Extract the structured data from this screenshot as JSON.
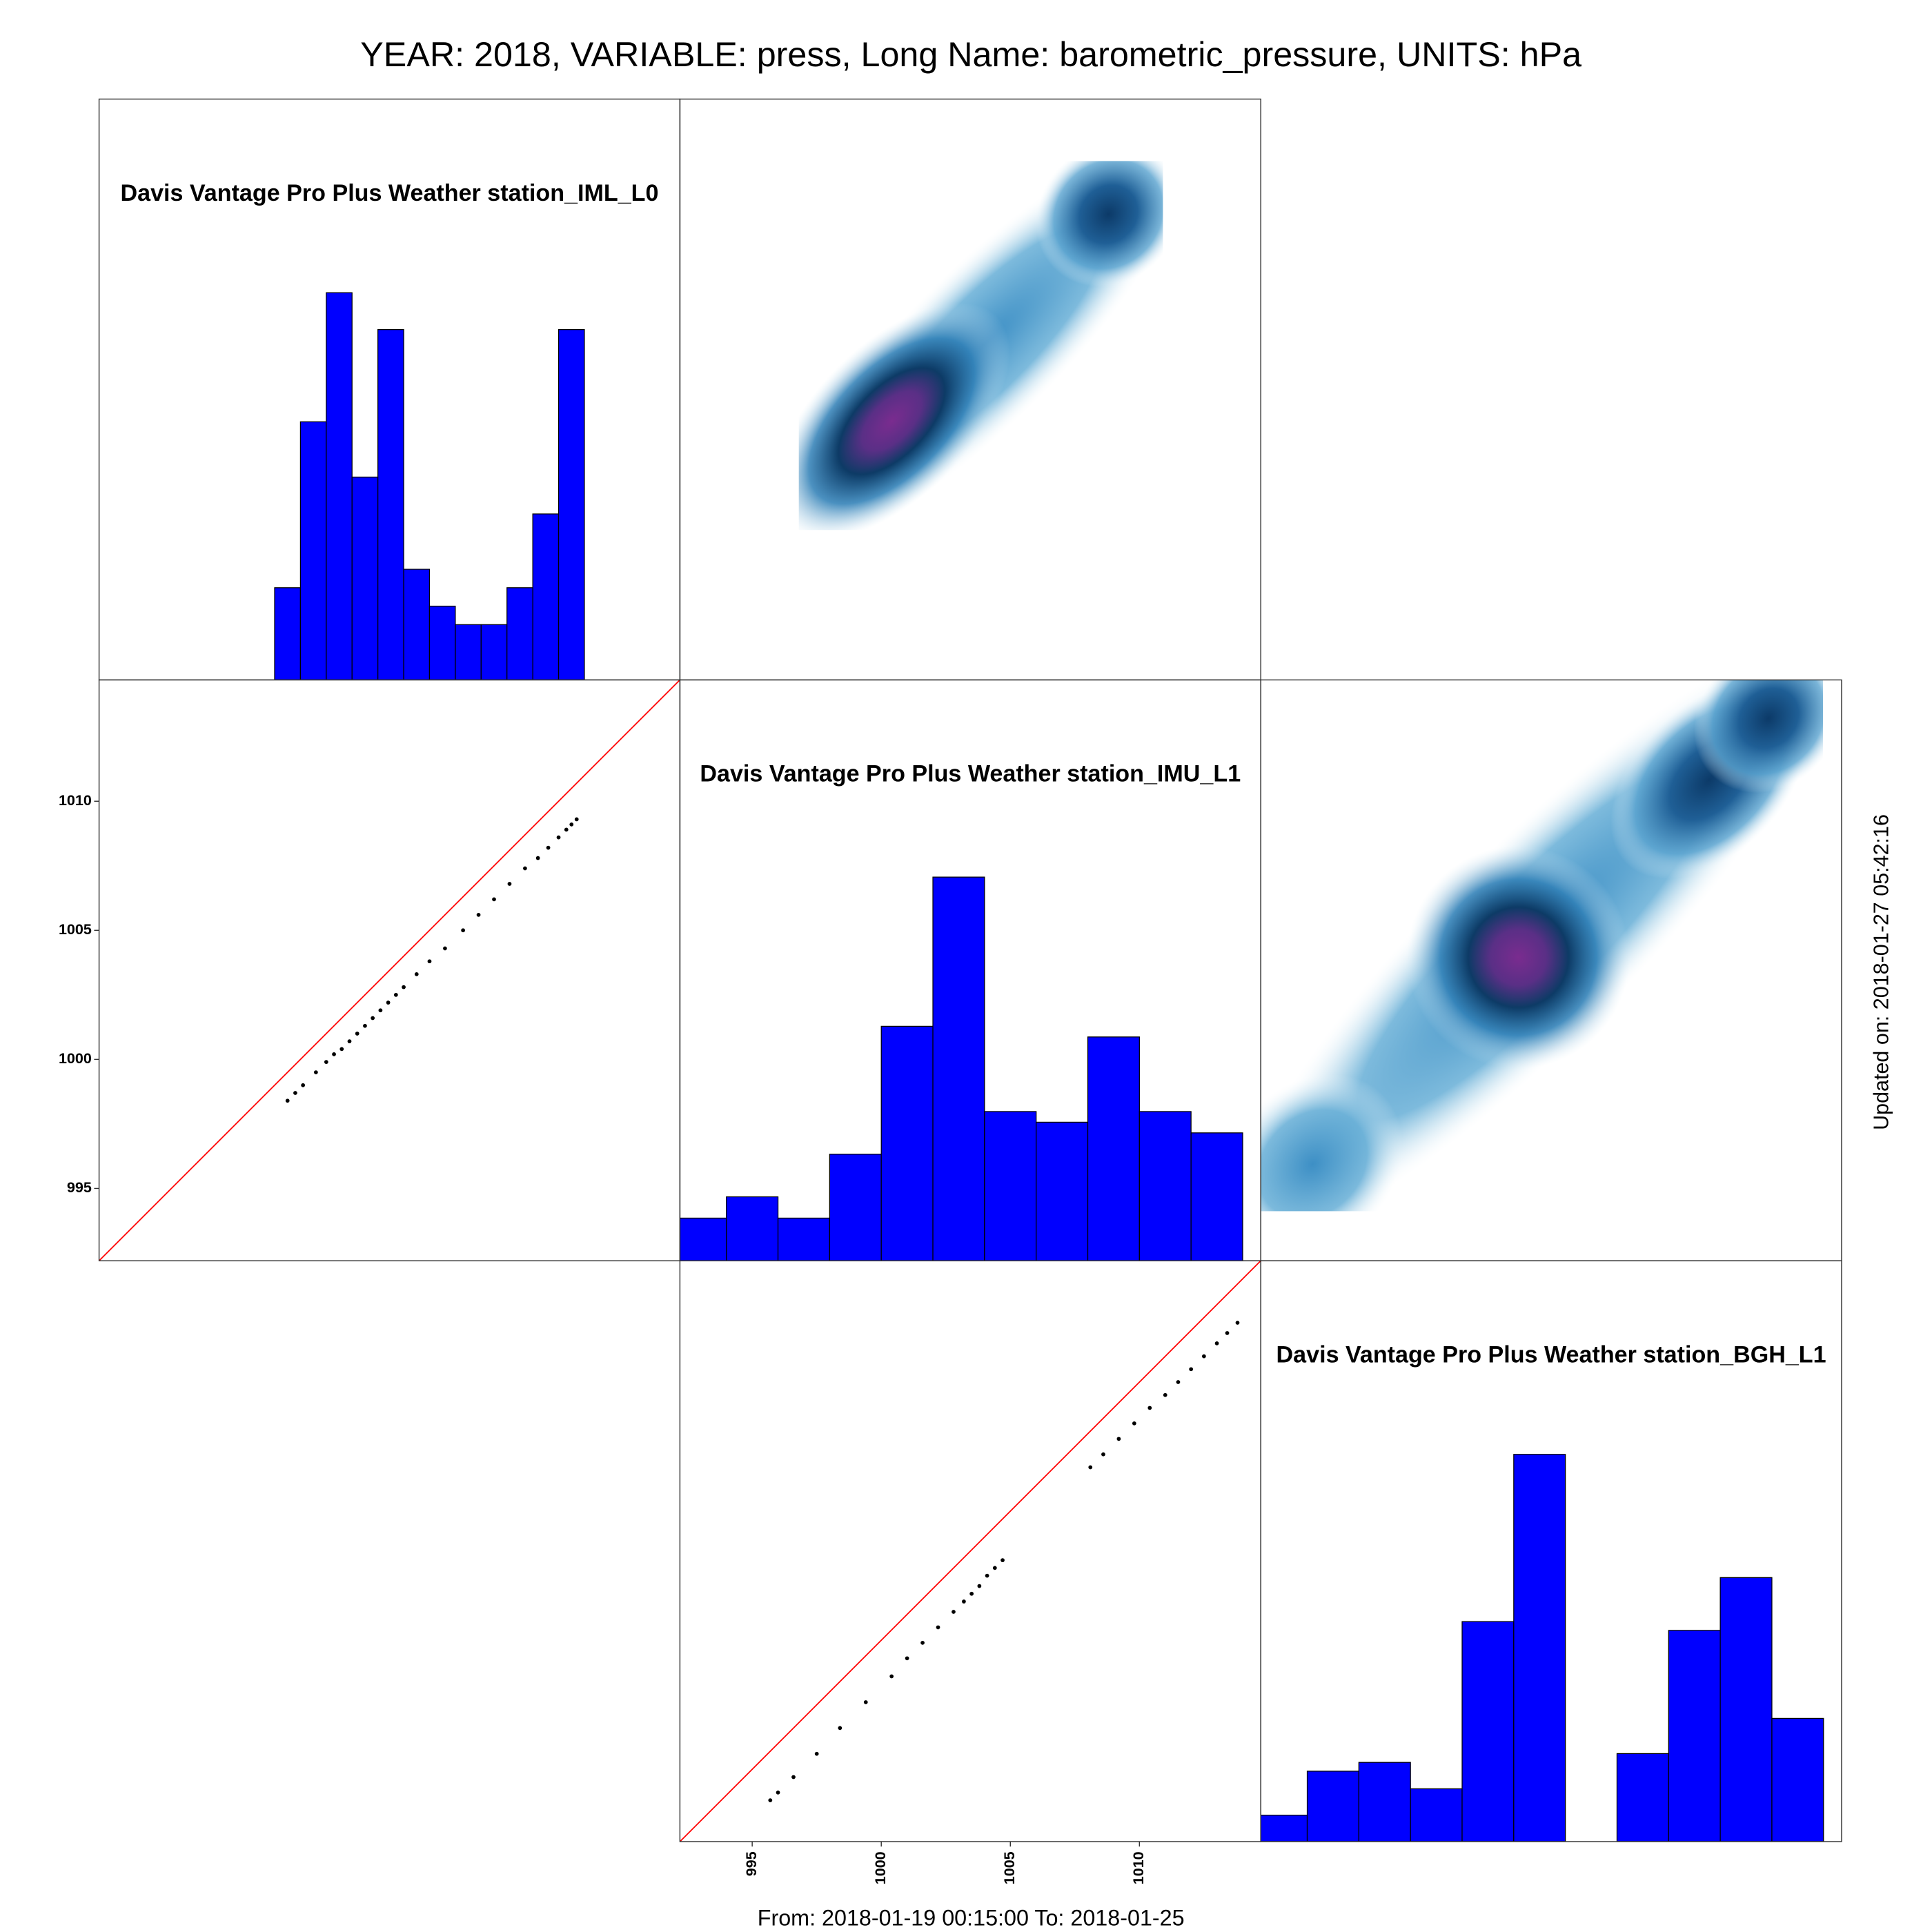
{
  "title": "YEAR: 2018, VARIABLE: press, Long Name: barometric_pressure, UNITS: hPa",
  "footer": "From: 2018-01-19 00:15:00 To: 2018-01-25",
  "updated": "Updated on: 2018-01-27 05:42:16",
  "chart_data": [
    {
      "type": "histogram",
      "title": "Davis Vantage Pro Plus Weather station_IML_L0",
      "color": "#0000ff",
      "bins": [
        999,
        1000,
        1001,
        1002,
        1003,
        1004,
        1005,
        1006,
        1007,
        1008,
        1009,
        1010,
        1011
      ],
      "values": [
        5,
        14,
        21,
        11,
        19,
        6,
        4,
        3,
        3,
        5,
        9,
        19
      ],
      "xlim": [
        992.2,
        1014.7
      ],
      "ylim": [
        0,
        31.5
      ]
    },
    {
      "type": "scatter",
      "color": "#000000",
      "identity_line_color": "#ff0000",
      "x": [
        999.5,
        999.8,
        1000.1,
        1000.6,
        1001.0,
        1001.3,
        1001.6,
        1001.9,
        1002.2,
        1002.5,
        1002.8,
        1003.1,
        1003.4,
        1003.7,
        1004.0,
        1004.5,
        1005.0,
        1005.6,
        1006.3,
        1006.9,
        1007.5,
        1008.1,
        1008.7,
        1009.2,
        1009.6,
        1010.0,
        1010.3,
        1010.5,
        1010.7
      ],
      "values": [
        998.4,
        998.7,
        999.0,
        999.5,
        999.9,
        1000.2,
        1000.4,
        1000.7,
        1001.0,
        1001.3,
        1001.6,
        1001.9,
        1002.2,
        1002.5,
        1002.8,
        1003.3,
        1003.8,
        1004.3,
        1005.0,
        1005.6,
        1006.2,
        1006.8,
        1007.4,
        1007.8,
        1008.2,
        1008.6,
        1008.9,
        1009.1,
        1009.3
      ],
      "xlim": [
        992.2,
        1014.7
      ],
      "ylim": [
        992.2,
        1014.7
      ],
      "yticks": [
        995,
        1000,
        1005,
        1010
      ]
    },
    {
      "type": "histogram",
      "title": "Davis Vantage Pro Plus Weather station_IMU_L1",
      "color": "#0000ff",
      "bins": [
        992,
        994,
        996,
        998,
        1000,
        1002,
        1004,
        1006,
        1008,
        1010,
        1012,
        1014
      ],
      "values": [
        4,
        6,
        4,
        10,
        22,
        36,
        14,
        13,
        21,
        14,
        12
      ],
      "xlim": [
        992.2,
        1014.7
      ],
      "ylim": [
        0,
        54.5
      ]
    },
    {
      "type": "scatter",
      "color": "#000000",
      "identity_line_color": "#ff0000",
      "x": [
        995.7,
        996.0,
        996.6,
        997.5,
        998.4,
        999.4,
        1000.4,
        1001.0,
        1001.6,
        1002.2,
        1002.8,
        1003.2,
        1003.5,
        1003.8,
        1004.1,
        1004.4,
        1004.7,
        1008.1,
        1008.6,
        1009.2,
        1009.8,
        1010.4,
        1011.0,
        1011.5,
        1012.0,
        1012.5,
        1013.0,
        1013.4,
        1013.8
      ],
      "values": [
        993.8,
        994.1,
        994.7,
        995.6,
        996.6,
        997.6,
        998.6,
        999.3,
        999.9,
        1000.5,
        1001.1,
        1001.5,
        1001.8,
        1002.1,
        1002.5,
        1002.8,
        1003.1,
        1006.7,
        1007.2,
        1007.8,
        1008.4,
        1009.0,
        1009.5,
        1010.0,
        1010.5,
        1011.0,
        1011.5,
        1011.9,
        1012.3
      ],
      "xlim": [
        992.2,
        1014.7
      ],
      "ylim": [
        992.2,
        1014.7
      ],
      "xticks": [
        995,
        1000,
        1005,
        1010
      ]
    },
    {
      "type": "histogram",
      "title": "Davis Vantage Pro Plus Weather station_BGH_L1",
      "color": "#0000ff",
      "bins": [
        992,
        994,
        996,
        998,
        1000,
        1002,
        1004,
        1006,
        1008,
        1010,
        1012,
        1014
      ],
      "values": [
        3,
        8,
        9,
        6,
        25,
        44,
        0,
        10,
        24,
        30,
        14
      ],
      "xlim": [
        992.2,
        1014.7
      ],
      "ylim": [
        0,
        66
      ]
    }
  ]
}
